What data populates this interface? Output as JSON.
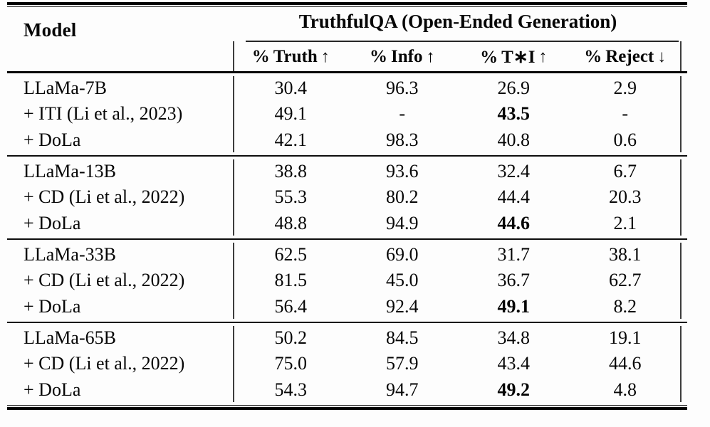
{
  "table": {
    "model_header": "Model",
    "span_header": "TruthfulQA (Open-Ended Generation)",
    "columns": [
      {
        "label": "% Truth",
        "arrow": "↑"
      },
      {
        "label": "% Info",
        "arrow": "↑"
      },
      {
        "label": "% T∗I",
        "arrow": "↑"
      },
      {
        "label": "% Reject",
        "arrow": "↓"
      }
    ],
    "groups": [
      {
        "rows": [
          {
            "label": "LLaMa-7B",
            "values": [
              "30.4",
              "96.3",
              "26.9",
              "2.9"
            ],
            "bold": [
              false,
              false,
              false,
              false
            ]
          },
          {
            "label": "+ ITI (Li et al., 2023)",
            "values": [
              "49.1",
              "-",
              "43.5",
              "-"
            ],
            "bold": [
              false,
              false,
              true,
              false
            ]
          },
          {
            "label": "+ DoLa",
            "values": [
              "42.1",
              "98.3",
              "40.8",
              "0.6"
            ],
            "bold": [
              false,
              false,
              false,
              false
            ]
          }
        ]
      },
      {
        "rows": [
          {
            "label": "LLaMa-13B",
            "values": [
              "38.8",
              "93.6",
              "32.4",
              "6.7"
            ],
            "bold": [
              false,
              false,
              false,
              false
            ]
          },
          {
            "label": "+ CD (Li et al., 2022)",
            "values": [
              "55.3",
              "80.2",
              "44.4",
              "20.3"
            ],
            "bold": [
              false,
              false,
              false,
              false
            ]
          },
          {
            "label": "+ DoLa",
            "values": [
              "48.8",
              "94.9",
              "44.6",
              "2.1"
            ],
            "bold": [
              false,
              false,
              true,
              false
            ]
          }
        ]
      },
      {
        "rows": [
          {
            "label": "LLaMa-33B",
            "values": [
              "62.5",
              "69.0",
              "31.7",
              "38.1"
            ],
            "bold": [
              false,
              false,
              false,
              false
            ]
          },
          {
            "label": "+ CD (Li et al., 2022)",
            "values": [
              "81.5",
              "45.0",
              "36.7",
              "62.7"
            ],
            "bold": [
              false,
              false,
              false,
              false
            ]
          },
          {
            "label": "+ DoLa",
            "values": [
              "56.4",
              "92.4",
              "49.1",
              "8.2"
            ],
            "bold": [
              false,
              false,
              true,
              false
            ]
          }
        ]
      },
      {
        "rows": [
          {
            "label": "LLaMa-65B",
            "values": [
              "50.2",
              "84.5",
              "34.8",
              "19.1"
            ],
            "bold": [
              false,
              false,
              false,
              false
            ]
          },
          {
            "label": "+ CD (Li et al., 2022)",
            "values": [
              "75.0",
              "57.9",
              "43.4",
              "44.6"
            ],
            "bold": [
              false,
              false,
              false,
              false
            ]
          },
          {
            "label": "+ DoLa",
            "values": [
              "54.3",
              "94.7",
              "49.2",
              "4.8"
            ],
            "bold": [
              false,
              false,
              true,
              false
            ]
          }
        ]
      }
    ],
    "colors": {
      "rule": "#000000",
      "separator_bar": "#3d3d3d",
      "text": "#060606",
      "background": "#fdfdfd"
    }
  }
}
